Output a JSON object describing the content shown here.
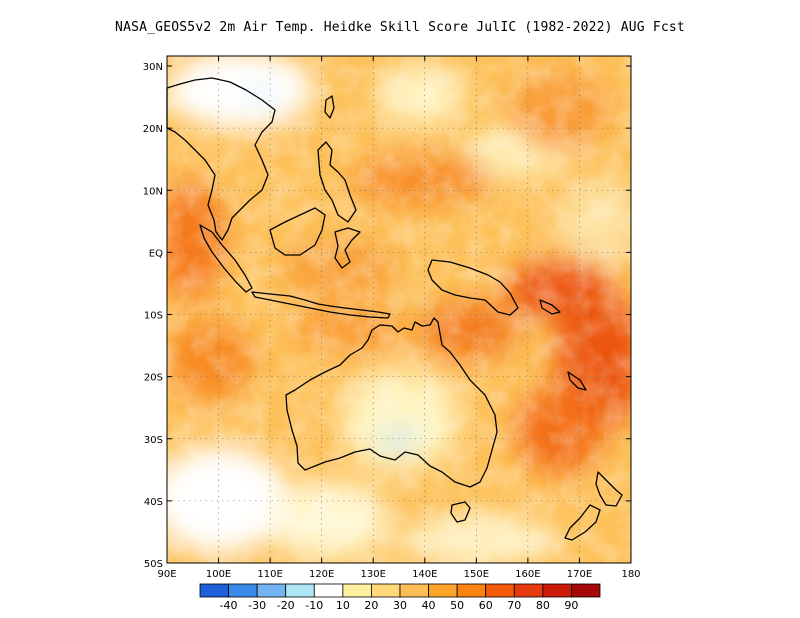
{
  "title": "NASA_GEOS5v2  2m Air Temp. Heidke Skill Score JulIC (1982-2022) AUG Fcst",
  "lat_labels": [
    "30N",
    "20N",
    "10N",
    "EQ",
    "10S",
    "20S",
    "30S",
    "40S",
    "50S"
  ],
  "lon_labels": [
    "90E",
    "100E",
    "110E",
    "120E",
    "130E",
    "140E",
    "150E",
    "160E",
    "170E",
    "180"
  ],
  "colorbar": {
    "colors": [
      "#1f5fd9",
      "#3a8ae8",
      "#74b3f2",
      "#aee6f5",
      "#ffffff",
      "#fff0a0",
      "#fed97a",
      "#fdbf55",
      "#fca52a",
      "#fa8311",
      "#f45b0c",
      "#e53b0e",
      "#cc1b09",
      "#a50807"
    ],
    "labels": [
      "-40",
      "-30",
      "-20",
      "-10",
      "10",
      "20",
      "30",
      "40",
      "50",
      "60",
      "70",
      "80",
      "90"
    ]
  }
}
